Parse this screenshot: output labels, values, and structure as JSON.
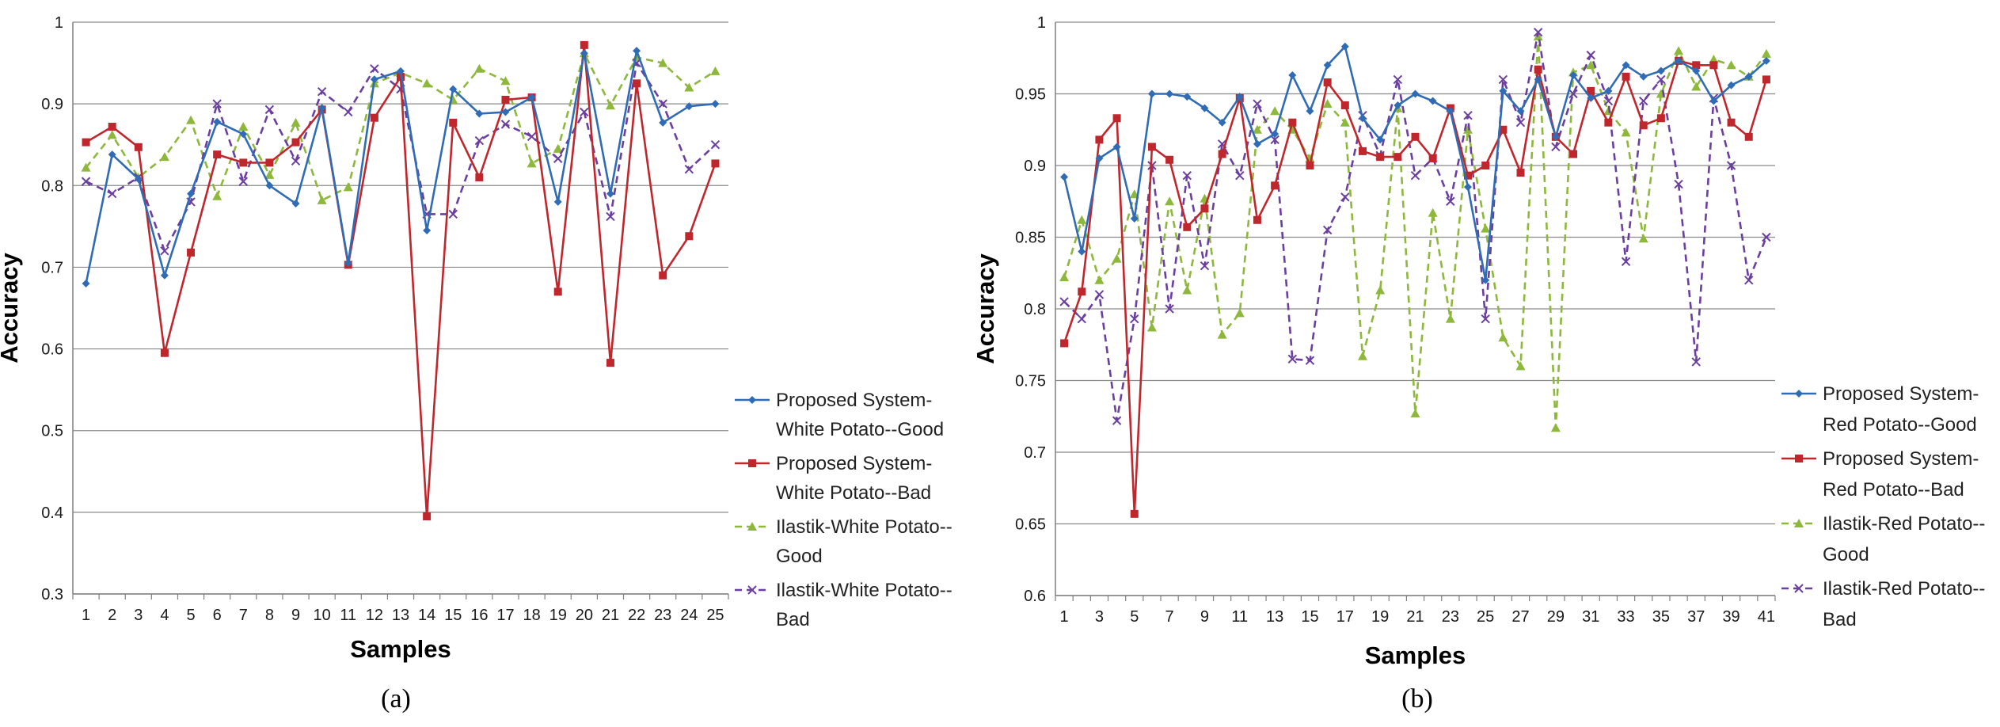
{
  "chart_data": [
    {
      "type": "line",
      "caption": "(a)",
      "xlabel": "Samples",
      "ylabel": "Accuracy",
      "ylim": [
        0.3,
        1
      ],
      "yticks": [
        "0.3",
        "0.4",
        "0.5",
        "0.6",
        "0.7",
        "0.8",
        "0.9",
        "1"
      ],
      "x": [
        1,
        2,
        3,
        4,
        5,
        6,
        7,
        8,
        9,
        10,
        11,
        12,
        13,
        14,
        15,
        16,
        17,
        18,
        19,
        20,
        21,
        22,
        23,
        24,
        25
      ],
      "grid": true,
      "legend_position": "right",
      "series": [
        {
          "name": "Proposed System-White Potato--Good",
          "legend_lines": [
            "Proposed System-",
            "White Potato--Good"
          ],
          "color": "#2F6CB5",
          "marker": "diamond",
          "dash": "solid",
          "values": [
            0.68,
            0.838,
            0.808,
            0.69,
            0.79,
            0.878,
            0.863,
            0.8,
            0.778,
            0.895,
            0.705,
            0.93,
            0.94,
            0.745,
            0.918,
            0.888,
            0.89,
            0.908,
            0.78,
            0.962,
            0.79,
            0.965,
            0.877,
            0.897,
            0.9
          ]
        },
        {
          "name": "Proposed System-White Potato--Bad",
          "legend_lines": [
            "Proposed System-",
            "White Potato--Bad"
          ],
          "color": "#C0272D",
          "marker": "square",
          "dash": "solid",
          "values": [
            0.853,
            0.872,
            0.847,
            0.595,
            0.718,
            0.838,
            0.828,
            0.828,
            0.853,
            0.893,
            0.703,
            0.883,
            0.933,
            0.395,
            0.877,
            0.81,
            0.905,
            0.908,
            0.67,
            0.972,
            0.583,
            0.925,
            0.69,
            0.738,
            0.827
          ]
        },
        {
          "name": "Ilastik-White Potato--Good",
          "legend_lines": [
            "Ilastik-White Potato--",
            "Good"
          ],
          "color": "#8DB83C",
          "marker": "triangle",
          "dash": "dashed",
          "values": [
            0.822,
            0.862,
            0.81,
            0.835,
            0.88,
            0.787,
            0.872,
            0.813,
            0.877,
            0.782,
            0.798,
            0.925,
            0.938,
            0.925,
            0.905,
            0.943,
            0.928,
            0.827,
            0.845,
            0.962,
            0.898,
            0.957,
            0.95,
            0.92,
            0.94
          ]
        },
        {
          "name": "Ilastik-White Potato--Bad",
          "legend_lines": [
            "Ilastik-White Potato--",
            "Bad"
          ],
          "color": "#6B3FA0",
          "marker": "x",
          "dash": "dashed",
          "values": [
            0.805,
            0.79,
            0.81,
            0.72,
            0.78,
            0.9,
            0.805,
            0.893,
            0.83,
            0.915,
            0.89,
            0.943,
            0.918,
            0.765,
            0.765,
            0.855,
            0.875,
            0.86,
            0.833,
            0.89,
            0.762,
            0.95,
            0.9,
            0.82,
            0.85
          ]
        }
      ]
    },
    {
      "type": "line",
      "caption": "(b)",
      "xlabel": "Samples",
      "ylabel": "Accuracy",
      "ylim": [
        0.6,
        1
      ],
      "yticks": [
        "0.6",
        "0.65",
        "0.7",
        "0.75",
        "0.8",
        "0.85",
        "0.9",
        "0.95",
        "1"
      ],
      "x": [
        1,
        2,
        3,
        4,
        5,
        6,
        7,
        8,
        9,
        10,
        11,
        12,
        13,
        14,
        15,
        16,
        17,
        18,
        19,
        20,
        21,
        22,
        23,
        24,
        25,
        26,
        27,
        28,
        29,
        30,
        31,
        32,
        33,
        34,
        35,
        36,
        37,
        38,
        39,
        40,
        41
      ],
      "xticks_shown": [
        1,
        3,
        5,
        7,
        9,
        11,
        13,
        15,
        17,
        19,
        21,
        23,
        25,
        27,
        29,
        31,
        33,
        35,
        37,
        39,
        41
      ],
      "grid": true,
      "legend_position": "right",
      "series": [
        {
          "name": "Proposed System-Red Potato--Good",
          "legend_lines": [
            "Proposed System-",
            "Red Potato--Good"
          ],
          "color": "#2F6CB5",
          "marker": "diamond",
          "dash": "solid",
          "values": [
            0.892,
            0.84,
            0.905,
            0.913,
            0.863,
            0.95,
            0.95,
            0.948,
            0.94,
            0.93,
            0.948,
            0.915,
            0.922,
            0.963,
            0.938,
            0.97,
            0.983,
            0.933,
            0.918,
            0.942,
            0.95,
            0.945,
            0.938,
            0.885,
            0.82,
            0.952,
            0.938,
            0.96,
            0.92,
            0.963,
            0.947,
            0.952,
            0.97,
            0.962,
            0.966,
            0.973,
            0.966,
            0.945,
            0.956,
            0.962,
            0.973
          ]
        },
        {
          "name": "Proposed System-Red Potato--Bad",
          "legend_lines": [
            "Proposed System-",
            "Red Potato--Bad"
          ],
          "color": "#C0272D",
          "marker": "square",
          "dash": "solid",
          "values": [
            0.776,
            0.812,
            0.918,
            0.933,
            0.657,
            0.913,
            0.904,
            0.857,
            0.87,
            0.908,
            0.947,
            0.862,
            0.886,
            0.93,
            0.9,
            0.958,
            0.942,
            0.91,
            0.906,
            0.906,
            0.92,
            0.905,
            0.94,
            0.893,
            0.9,
            0.925,
            0.895,
            0.967,
            0.92,
            0.908,
            0.952,
            0.93,
            0.962,
            0.928,
            0.933,
            0.973,
            0.97,
            0.97,
            0.93,
            0.92,
            0.96
          ]
        },
        {
          "name": "Ilastik-Red Potato--Good",
          "legend_lines": [
            "Ilastik-Red Potato--",
            "Good"
          ],
          "color": "#8DB83C",
          "marker": "triangle",
          "dash": "dashed",
          "values": [
            0.822,
            0.862,
            0.82,
            0.835,
            0.88,
            0.787,
            0.875,
            0.813,
            0.877,
            0.782,
            0.797,
            0.925,
            0.938,
            0.925,
            0.905,
            0.943,
            0.93,
            0.767,
            0.813,
            0.94,
            0.727,
            0.867,
            0.793,
            0.925,
            0.856,
            0.78,
            0.76,
            0.99,
            0.717,
            0.965,
            0.97,
            0.938,
            0.923,
            0.849,
            0.95,
            0.98,
            0.955,
            0.974,
            0.97,
            0.962,
            0.978
          ]
        },
        {
          "name": "Ilastik-Red Potato--Bad",
          "legend_lines": [
            "Ilastik-Red Potato--",
            "Bad"
          ],
          "color": "#6B3FA0",
          "marker": "x",
          "dash": "dashed",
          "values": [
            0.805,
            0.793,
            0.81,
            0.722,
            0.793,
            0.9,
            0.8,
            0.893,
            0.83,
            0.915,
            0.893,
            0.943,
            0.918,
            0.765,
            0.764,
            0.855,
            0.878,
            0.935,
            0.907,
            0.96,
            0.893,
            0.905,
            0.875,
            0.935,
            0.793,
            0.96,
            0.93,
            0.993,
            0.913,
            0.95,
            0.977,
            0.945,
            0.833,
            0.945,
            0.96,
            0.887,
            0.763,
            0.947,
            0.9,
            0.82,
            0.85
          ]
        }
      ]
    }
  ]
}
